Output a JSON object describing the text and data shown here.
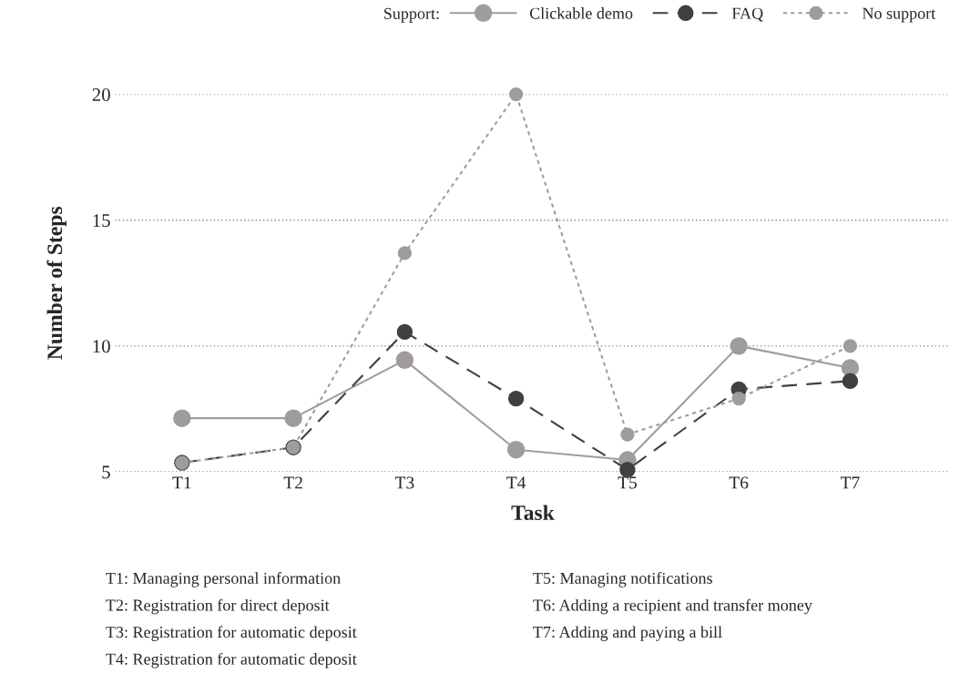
{
  "chart_data": {
    "type": "line",
    "xlabel": "Task",
    "ylabel": "Number of Steps",
    "legend_title": "Support:",
    "categories": [
      "T1",
      "T2",
      "T3",
      "T4",
      "T5",
      "T6",
      "T7"
    ],
    "series": [
      {
        "name": "Clickable demo",
        "color": "#a09c9c",
        "line_style": "solid",
        "values": [
          7.13,
          7.13,
          9.44,
          5.88,
          5.47,
          10,
          9.13
        ]
      },
      {
        "name": "FAQ",
        "color": "#404040",
        "line_style": "dashed",
        "values": [
          5.36,
          5.97,
          10.56,
          7.91,
          5.08,
          8.28,
          8.61
        ]
      },
      {
        "name": "No support",
        "color": "#a09c9c",
        "line_style": "dotted",
        "values": [
          5.36,
          5.97,
          13.69,
          20,
          6.48,
          7.91,
          10
        ]
      }
    ],
    "ylim": [
      5,
      20
    ],
    "yticks": [
      5,
      10,
      15,
      20
    ],
    "grid": "y",
    "legend": "top right",
    "marker": "circle",
    "annotations": [
      "T1: Managing personal information",
      "T2: Registration for direct deposit",
      "T3: Registration for automatic deposit",
      "T4: Registration for automatic deposit",
      "T5: Managing notifications",
      "T6: Adding a recipient and transfer money",
      "T7: Adding and paying a bill"
    ]
  }
}
